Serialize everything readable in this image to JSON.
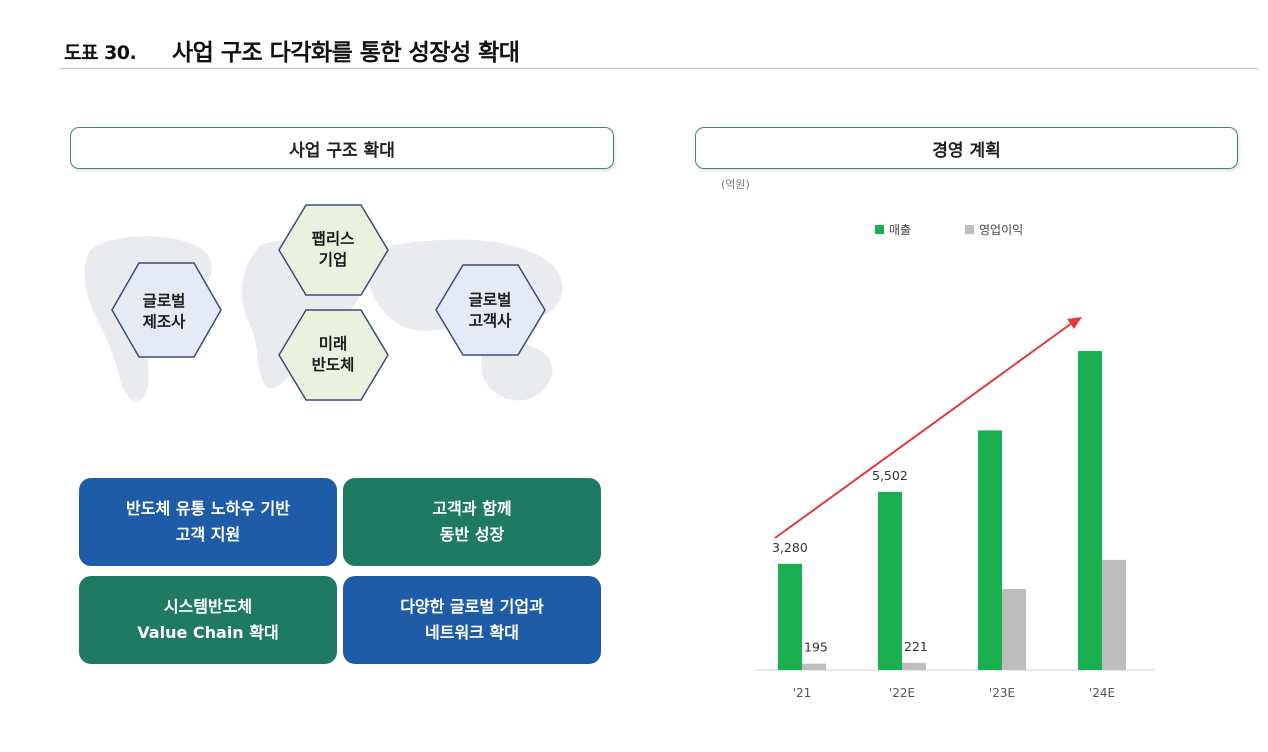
{
  "header": {
    "figure_label": "도표 30.",
    "title": "사업 구조 다각화를 통한 성장성 확대"
  },
  "left_panel": {
    "title": "사업 구조 확대",
    "hexagons": {
      "global_manufacturer": "글로벌\n제조사",
      "fabless": "팹리스\n기업",
      "future_semiconductor": "미래\n반도체",
      "global_customer": "글로벌\n고객사"
    },
    "tiles": [
      {
        "line1": "반도체 유통 노하우 기반",
        "line2": "고객 지원",
        "color": "#1f5ca8"
      },
      {
        "line1": "고객과 함께",
        "line2": "동반 성장",
        "color": "#1f7a62"
      },
      {
        "line1": "시스템반도체",
        "line2": "Value Chain 확대",
        "color": "#1f7a62"
      },
      {
        "line1": "다양한 글로벌 기업과",
        "line2": "네트워크 확대",
        "color": "#1f5ca8"
      }
    ],
    "colors": {
      "hex_blue_fill": "#e6e9f6",
      "hex_green_fill": "#eaf1df",
      "hex_stroke": "#3f4a7a"
    }
  },
  "right_panel": {
    "title": "경영 계획",
    "unit": "(억원)"
  },
  "chart_data": {
    "type": "bar",
    "categories": [
      "'21",
      "'22E",
      "'23E",
      "'24E"
    ],
    "series": [
      {
        "name": "매출",
        "values": [
          3280,
          5502,
          7400,
          9850
        ],
        "labels": [
          "3,280",
          "5,502",
          "",
          ""
        ],
        "color": "#1aaf50"
      },
      {
        "name": "영업이익",
        "values": [
          195,
          221,
          2500,
          3400
        ],
        "labels": [
          "195",
          "221",
          "",
          ""
        ],
        "color": "#bdbdbd"
      }
    ],
    "ylim": [
      0,
      10500
    ],
    "legend_position": "top",
    "grid": false,
    "trend_arrow": {
      "color": "#e03b3b"
    }
  }
}
